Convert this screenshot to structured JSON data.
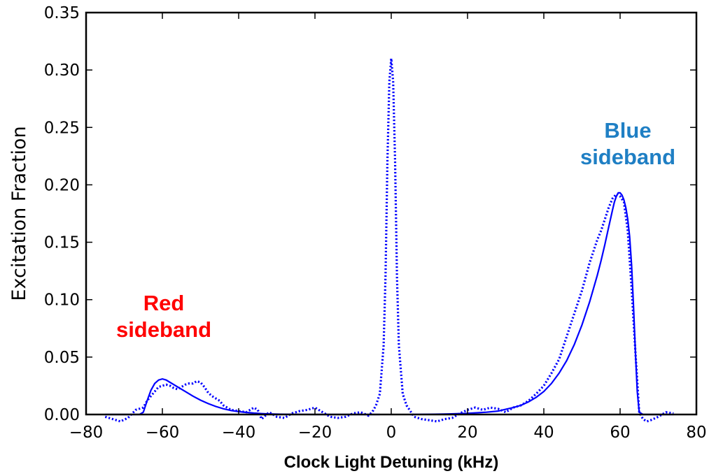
{
  "chart_data": {
    "type": "line",
    "xlabel": "Clock Light Detuning (kHz)",
    "ylabel": "Excitation Fraction",
    "xlim": [
      -80,
      80
    ],
    "ylim": [
      0,
      0.35
    ],
    "xticks": [
      "−80",
      "−60",
      "−40",
      "−20",
      "0",
      "20",
      "40",
      "60",
      "80"
    ],
    "yticks": [
      "0.00",
      "0.05",
      "0.10",
      "0.15",
      "0.20",
      "0.25",
      "0.30",
      "0.35"
    ],
    "grid": false,
    "annotations": [
      {
        "lines": [
          "Red",
          "sideband"
        ],
        "color": "#ff0000"
      },
      {
        "lines": [
          "Blue",
          "sideband"
        ],
        "color": "#1f7fc4"
      }
    ],
    "series": [
      {
        "style": "dotted",
        "color": "#0000ff",
        "x": [
          -75,
          -73,
          -71,
          -69,
          -67,
          -65,
          -64,
          -63,
          -62,
          -61,
          -60,
          -59,
          -58,
          -57,
          -56,
          -55,
          -54,
          -53,
          -52,
          -51,
          -50,
          -49,
          -48,
          -47,
          -46,
          -45,
          -44,
          -42,
          -40,
          -38,
          -36,
          -35,
          -34,
          -32,
          -30,
          -28,
          -26,
          -24,
          -22,
          -20,
          -18,
          -16,
          -14,
          -12,
          -10,
          -8,
          -6,
          -5,
          -4,
          -3,
          -2,
          -1.5,
          -1,
          -0.5,
          0,
          0.5,
          1,
          1.5,
          2,
          3,
          4,
          5,
          6,
          8,
          10,
          12,
          14,
          16,
          18,
          20,
          22,
          24,
          26,
          28,
          30,
          32,
          34,
          36,
          38,
          40,
          42,
          44,
          46,
          48,
          50,
          52,
          54,
          55,
          56,
          57,
          58,
          59,
          60,
          61,
          62,
          63,
          64,
          65,
          66,
          67,
          68,
          70,
          72,
          74
        ],
        "y": [
          -0.002,
          -0.004,
          -0.006,
          -0.003,
          0.004,
          0.006,
          0.012,
          0.016,
          0.02,
          0.024,
          0.025,
          0.026,
          0.025,
          0.023,
          0.022,
          0.024,
          0.026,
          0.027,
          0.027,
          0.029,
          0.028,
          0.024,
          0.019,
          0.016,
          0.014,
          0.012,
          0.008,
          0.004,
          0.003,
          0.002,
          0.006,
          0.004,
          -0.004,
          0.002,
          -0.002,
          -0.003,
          0.001,
          0.003,
          0.004,
          0.006,
          0.002,
          -0.002,
          -0.003,
          -0.002,
          0.001,
          0.002,
          -0.001,
          0.002,
          0.008,
          0.018,
          0.06,
          0.12,
          0.22,
          0.29,
          0.31,
          0.29,
          0.22,
          0.12,
          0.06,
          0.018,
          0.008,
          0.003,
          -0.002,
          -0.004,
          -0.005,
          -0.006,
          -0.004,
          -0.003,
          0.001,
          0.004,
          0.006,
          0.004,
          0.006,
          0.005,
          0.002,
          0.006,
          0.008,
          0.012,
          0.018,
          0.025,
          0.036,
          0.048,
          0.068,
          0.088,
          0.108,
          0.132,
          0.152,
          0.16,
          0.17,
          0.18,
          0.188,
          0.192,
          0.19,
          0.185,
          0.16,
          0.11,
          0.055,
          0.002,
          -0.004,
          -0.006,
          -0.005,
          -0.002,
          0.002,
          0.001
        ]
      },
      {
        "style": "solid",
        "color": "#0000ff",
        "x": [
          -75,
          -70,
          -66,
          -65,
          -64,
          -63,
          -62,
          -61,
          -60,
          -59,
          -58,
          -56,
          -54,
          -52,
          -50,
          -48,
          -46,
          -44,
          -42,
          -40,
          -38,
          -36,
          -34,
          -32,
          -30,
          -28,
          -25,
          -20,
          -15,
          -10,
          -5,
          -3
        ],
        "y": [
          0,
          0,
          0,
          0.002,
          0.012,
          0.021,
          0.027,
          0.03,
          0.031,
          0.03,
          0.028,
          0.024,
          0.02,
          0.016,
          0.0125,
          0.0095,
          0.007,
          0.005,
          0.0035,
          0.0025,
          0.0018,
          0.0012,
          0.0008,
          0.0005,
          0.0003,
          0.0002,
          0.0001,
          0,
          0,
          0,
          0,
          0
        ]
      },
      {
        "style": "solid",
        "color": "#0000ff",
        "x": [
          5,
          10,
          15,
          20,
          25,
          28,
          30,
          32,
          34,
          36,
          38,
          40,
          42,
          44,
          46,
          48,
          50,
          52,
          54,
          55,
          56,
          57,
          58,
          58.5,
          59,
          59.5,
          60,
          60.5,
          61,
          61.5,
          62,
          62.5,
          63,
          63.5,
          64,
          64.5,
          65,
          66,
          70,
          74
        ],
        "y": [
          0,
          0.0002,
          0.0005,
          0.001,
          0.002,
          0.003,
          0.0045,
          0.006,
          0.008,
          0.011,
          0.015,
          0.02,
          0.027,
          0.036,
          0.047,
          0.061,
          0.078,
          0.098,
          0.121,
          0.134,
          0.148,
          0.163,
          0.178,
          0.185,
          0.19,
          0.193,
          0.193,
          0.191,
          0.187,
          0.18,
          0.17,
          0.155,
          0.13,
          0.095,
          0.055,
          0.02,
          0.002,
          0,
          0,
          0
        ]
      }
    ]
  }
}
